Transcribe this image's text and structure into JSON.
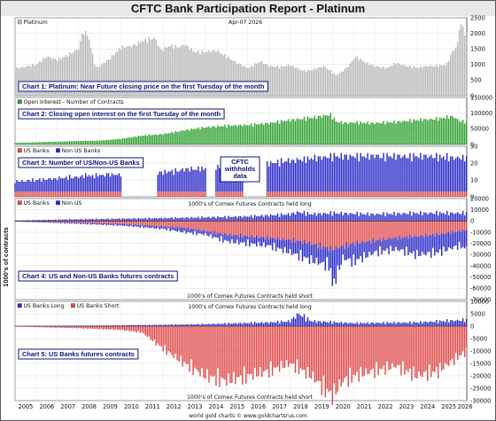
{
  "title": "CFTC Bank Participation Report - Platinum",
  "date_label": "Apr-07 2026",
  "y_axis_label": "1000's of contracts",
  "credit": "world gold charts © www.goldchartsrus.com",
  "years": [
    "2005",
    "2006",
    "2007",
    "2008",
    "2009",
    "2010",
    "2011",
    "2012",
    "2013",
    "2014",
    "2015",
    "2016",
    "2017",
    "2018",
    "2019",
    "2020",
    "2021",
    "2022",
    "2023",
    "2024",
    "2025",
    "2026"
  ],
  "colors": {
    "price": "#b8b8b8",
    "oi": "#2ea02e",
    "us": "#e04a4a",
    "nonus": "#2828c8",
    "label_border": "#101080"
  },
  "chart_data": [
    {
      "type": "bar",
      "id": "price",
      "label": "Chart 1: Platinum: Near Future closing price on the first Tuesday of the month",
      "legend": [
        {
          "name": "Platinum",
          "color": "#b8b8b8"
        }
      ],
      "ylim": [
        0,
        2500
      ],
      "ticks": [
        0,
        500,
        1000,
        1500,
        2000,
        2500
      ],
      "x_range": [
        2005.0,
        2026.35
      ],
      "knots": [
        [
          2005.0,
          870
        ],
        [
          2006.0,
          1000
        ],
        [
          2006.5,
          1250
        ],
        [
          2007.0,
          1150
        ],
        [
          2007.5,
          1300
        ],
        [
          2008.0,
          1500
        ],
        [
          2008.2,
          2050
        ],
        [
          2008.45,
          1950
        ],
        [
          2008.8,
          900
        ],
        [
          2009.0,
          950
        ],
        [
          2009.5,
          1200
        ],
        [
          2010.0,
          1550
        ],
        [
          2010.6,
          1600
        ],
        [
          2011.0,
          1750
        ],
        [
          2011.6,
          1850
        ],
        [
          2011.9,
          1450
        ],
        [
          2012.3,
          1600
        ],
        [
          2012.8,
          1550
        ],
        [
          2013.0,
          1650
        ],
        [
          2013.5,
          1400
        ],
        [
          2014.0,
          1400
        ],
        [
          2014.5,
          1450
        ],
        [
          2015.0,
          1250
        ],
        [
          2015.5,
          1050
        ],
        [
          2016.0,
          880
        ],
        [
          2016.6,
          1100
        ],
        [
          2017.0,
          950
        ],
        [
          2017.5,
          920
        ],
        [
          2018.0,
          980
        ],
        [
          2018.6,
          800
        ],
        [
          2019.0,
          820
        ],
        [
          2019.6,
          950
        ],
        [
          2020.2,
          650
        ],
        [
          2020.7,
          900
        ],
        [
          2021.1,
          1250
        ],
        [
          2021.6,
          1050
        ],
        [
          2022.0,
          950
        ],
        [
          2022.6,
          880
        ],
        [
          2023.0,
          1050
        ],
        [
          2023.5,
          950
        ],
        [
          2024.0,
          900
        ],
        [
          2024.5,
          950
        ],
        [
          2025.0,
          950
        ],
        [
          2025.4,
          1000
        ],
        [
          2025.65,
          1400
        ],
        [
          2025.9,
          1600
        ],
        [
          2026.05,
          2400
        ],
        [
          2026.2,
          2050
        ],
        [
          2026.3,
          2000
        ]
      ]
    },
    {
      "type": "bar",
      "id": "oi",
      "label": "Chart 2: Closing open interest on the first Tuesday of the month",
      "legend": [
        {
          "name": "Open Interest - Number of Contracts",
          "color": "#2ea02e"
        }
      ],
      "ylim": [
        0,
        150000
      ],
      "ticks": [
        0,
        50000,
        100000,
        150000
      ],
      "x_range": [
        2005.0,
        2026.35
      ],
      "knots": [
        [
          2005.0,
          5000
        ],
        [
          2006.0,
          7000
        ],
        [
          2007.0,
          9000
        ],
        [
          2008.0,
          11000
        ],
        [
          2009.0,
          12000
        ],
        [
          2010.0,
          18000
        ],
        [
          2011.0,
          28000
        ],
        [
          2012.0,
          33000
        ],
        [
          2013.0,
          45000
        ],
        [
          2014.0,
          55000
        ],
        [
          2015.0,
          60000
        ],
        [
          2016.0,
          62000
        ],
        [
          2017.0,
          68000
        ],
        [
          2018.0,
          78000
        ],
        [
          2019.0,
          85000
        ],
        [
          2019.9,
          95000
        ],
        [
          2020.2,
          72000
        ],
        [
          2020.7,
          68000
        ],
        [
          2021.0,
          70000
        ],
        [
          2022.0,
          68000
        ],
        [
          2023.0,
          72000
        ],
        [
          2024.0,
          78000
        ],
        [
          2025.0,
          82000
        ],
        [
          2025.7,
          90000
        ],
        [
          2026.0,
          75000
        ],
        [
          2026.3,
          72000
        ]
      ]
    },
    {
      "type": "bar",
      "id": "banks",
      "label": "Chart 3: Number of US/Non-US Banks",
      "legend": [
        {
          "name": "US Banks",
          "color": "#e04a4a"
        },
        {
          "name": "Non US Banks",
          "color": "#2828c8"
        }
      ],
      "annotation": [
        "CFTC",
        "withholds",
        "data"
      ],
      "ylim": [
        0,
        30
      ],
      "ticks": [
        0,
        10,
        20,
        30
      ],
      "x_range": [
        2005.0,
        2026.35
      ],
      "gaps": [
        [
          2010.05,
          2011.7
        ],
        [
          2014.05,
          2014.45
        ],
        [
          2015.75,
          2016.9
        ]
      ],
      "us_knots": [
        [
          2005.0,
          3
        ],
        [
          2026.35,
          3
        ]
      ],
      "total_knots": [
        [
          2005.0,
          9
        ],
        [
          2007.0,
          11
        ],
        [
          2009.0,
          13
        ],
        [
          2011.7,
          14
        ],
        [
          2013.0,
          16
        ],
        [
          2015.0,
          18
        ],
        [
          2017.0,
          20
        ],
        [
          2018.5,
          22
        ],
        [
          2020.0,
          24
        ],
        [
          2022.0,
          24
        ],
        [
          2024.0,
          24
        ],
        [
          2026.35,
          23
        ]
      ]
    },
    {
      "type": "bar",
      "id": "us_nonus",
      "label": "Chart 4: US and Non-US Banks futures contracts",
      "legend": [
        {
          "name": "US Banks",
          "color": "#e04a4a"
        },
        {
          "name": "Non US",
          "color": "#2828c8"
        }
      ],
      "top_caption": "1000's of Comex Futures Contracts held long",
      "bottom_caption": "1000's of Comex Futures Contracts held short",
      "ylim": [
        -70000,
        20000
      ],
      "ticks": [
        -70000,
        -60000,
        -50000,
        -40000,
        -30000,
        -20000,
        -10000,
        0,
        10000,
        20000
      ],
      "x_range": [
        2005.0,
        2026.35
      ],
      "long_knots": [
        [
          2005.0,
          500
        ],
        [
          2008.0,
          1500
        ],
        [
          2012.0,
          2500
        ],
        [
          2016.0,
          4000
        ],
        [
          2018.0,
          6000
        ],
        [
          2018.4,
          8000
        ],
        [
          2019.0,
          6000
        ],
        [
          2020.0,
          7000
        ],
        [
          2022.0,
          6000
        ],
        [
          2024.0,
          7000
        ],
        [
          2026.35,
          7000
        ]
      ],
      "us_short_knots": [
        [
          2005.0,
          -300
        ],
        [
          2008.0,
          -1500
        ],
        [
          2010.0,
          -2500
        ],
        [
          2013.0,
          -6000
        ],
        [
          2015.0,
          -12000
        ],
        [
          2017.0,
          -15000
        ],
        [
          2018.5,
          -18000
        ],
        [
          2020.0,
          -25000
        ],
        [
          2021.0,
          -20000
        ],
        [
          2023.0,
          -15000
        ],
        [
          2025.0,
          -12000
        ],
        [
          2026.35,
          -8000
        ]
      ],
      "total_short_knots": [
        [
          2005.0,
          -500
        ],
        [
          2008.0,
          -2500
        ],
        [
          2010.0,
          -4000
        ],
        [
          2012.0,
          -7000
        ],
        [
          2013.0,
          -10000
        ],
        [
          2014.0,
          -12000
        ],
        [
          2015.0,
          -18000
        ],
        [
          2016.0,
          -20000
        ],
        [
          2017.0,
          -22000
        ],
        [
          2018.0,
          -28000
        ],
        [
          2019.0,
          -35000
        ],
        [
          2019.9,
          -40000
        ],
        [
          2020.0,
          -58000
        ],
        [
          2020.5,
          -33000
        ],
        [
          2021.0,
          -36000
        ],
        [
          2022.0,
          -28000
        ],
        [
          2023.0,
          -25000
        ],
        [
          2024.0,
          -30000
        ],
        [
          2025.0,
          -28000
        ],
        [
          2026.0,
          -22000
        ],
        [
          2026.35,
          -25000
        ]
      ]
    },
    {
      "type": "bar",
      "id": "us_banks",
      "label": "Chart 5: US Banks futures contracts",
      "legend": [
        {
          "name": "US Banks Long",
          "color": "#2828c8"
        },
        {
          "name": "US Banks Short",
          "color": "#e04a4a"
        }
      ],
      "top_caption": "1000's of Comex Futures Contracts held long",
      "bottom_caption": "1000's of Comex Futures Contracts held short",
      "ylim": [
        -30000,
        10000
      ],
      "ticks": [
        -30000,
        -25000,
        -20000,
        -15000,
        -10000,
        -5000,
        0,
        5000,
        10000
      ],
      "x_range": [
        2005.0,
        2026.35
      ],
      "long_knots": [
        [
          2005.0,
          100
        ],
        [
          2010.0,
          300
        ],
        [
          2014.0,
          800
        ],
        [
          2017.0,
          1500
        ],
        [
          2018.0,
          2000
        ],
        [
          2018.4,
          5000
        ],
        [
          2019.0,
          2000
        ],
        [
          2021.0,
          1200
        ],
        [
          2024.0,
          1500
        ],
        [
          2026.35,
          2500
        ]
      ],
      "short_knots": [
        [
          2005.0,
          -200
        ],
        [
          2008.0,
          -800
        ],
        [
          2010.0,
          -1500
        ],
        [
          2011.0,
          -2500
        ],
        [
          2012.0,
          -9000
        ],
        [
          2013.0,
          -15000
        ],
        [
          2014.0,
          -20000
        ],
        [
          2015.0,
          -22000
        ],
        [
          2016.0,
          -20000
        ],
        [
          2017.0,
          -18000
        ],
        [
          2018.0,
          -15000
        ],
        [
          2019.0,
          -20000
        ],
        [
          2020.0,
          -28000
        ],
        [
          2020.5,
          -22000
        ],
        [
          2021.0,
          -20000
        ],
        [
          2022.0,
          -18000
        ],
        [
          2023.0,
          -16000
        ],
        [
          2024.0,
          -20000
        ],
        [
          2025.0,
          -18000
        ],
        [
          2026.0,
          -12000
        ],
        [
          2026.35,
          -10000
        ]
      ]
    }
  ]
}
